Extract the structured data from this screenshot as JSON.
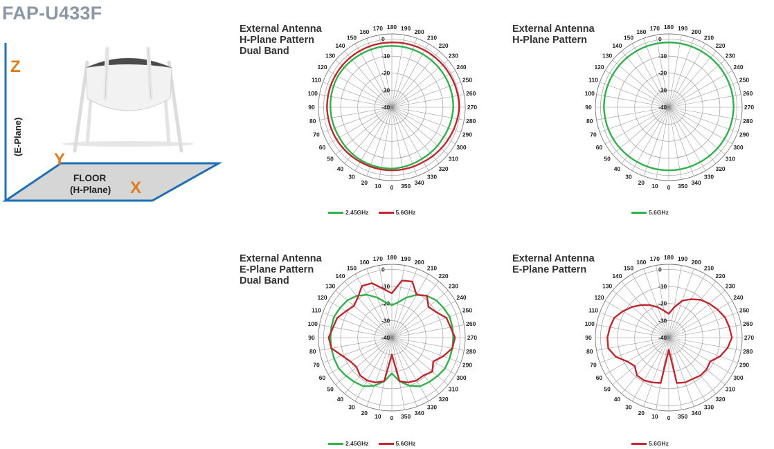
{
  "page": {
    "title": "FAP-U433F"
  },
  "diagram": {
    "axis_z": "Z",
    "axis_y": "Y",
    "axis_x": "X",
    "e_plane": "(E-Plane)",
    "floor_line1": "FLOOR",
    "floor_line2": "(H-Plane)",
    "accent_color": "#e07b1a",
    "line_color": "#1f6fb4"
  },
  "colors": {
    "green": "#2fb04a",
    "red": "#c0262d",
    "grid": "#9a9a9a"
  },
  "chart_data": [
    {
      "type": "polar-line",
      "title": [
        "External Antenna",
        "H-Plane Pattern",
        "Dual Band"
      ],
      "angle_labels": [
        "0",
        "10",
        "20",
        "30",
        "40",
        "50",
        "60",
        "70",
        "80",
        "90",
        "100",
        "110",
        "120",
        "130",
        "140",
        "150",
        "160",
        "170",
        "180",
        "190",
        "200",
        "210",
        "220",
        "230",
        "240",
        "250",
        "260",
        "270",
        "280",
        "290",
        "300",
        "310",
        "320",
        "330",
        "340",
        "350"
      ],
      "radial_ticks": [
        "0",
        "-10",
        "-20",
        "-30",
        "-40"
      ],
      "r_range_db": [
        -40,
        0
      ],
      "legend": [
        {
          "name": "2.45GHz",
          "color": "#2fb04a"
        },
        {
          "name": "5.6GHz",
          "color": "#c0262d"
        }
      ],
      "series": [
        {
          "name": "2.45GHz",
          "color": "#2fb04a",
          "angles_deg": [
            0,
            30,
            60,
            90,
            120,
            150,
            180,
            210,
            240,
            270,
            300,
            330,
            360
          ],
          "values_db": [
            -4,
            -4,
            -4.5,
            -4,
            -3.5,
            -4,
            -4,
            -4,
            -4,
            -4,
            -5,
            -5,
            -4
          ]
        },
        {
          "name": "5.6GHz",
          "color": "#c0262d",
          "angles_deg": [
            0,
            30,
            60,
            90,
            120,
            150,
            180,
            210,
            240,
            270,
            300,
            330,
            360
          ],
          "values_db": [
            -3,
            -3,
            -2.5,
            -2,
            -2,
            -2,
            -2,
            -1.5,
            -1,
            -0.5,
            -2,
            -3,
            -3
          ]
        }
      ]
    },
    {
      "type": "polar-line",
      "title": [
        "External Antenna",
        "H-Plane Pattern"
      ],
      "angle_labels": [
        "0",
        "10",
        "20",
        "30",
        "40",
        "50",
        "60",
        "70",
        "80",
        "90",
        "100",
        "110",
        "120",
        "130",
        "140",
        "150",
        "160",
        "170",
        "180",
        "190",
        "200",
        "210",
        "220",
        "230",
        "240",
        "250",
        "260",
        "270",
        "280",
        "290",
        "300",
        "310",
        "320",
        "330",
        "340",
        "350"
      ],
      "radial_ticks": [
        "0",
        "-10",
        "-20",
        "-30",
        "-40"
      ],
      "r_range_db": [
        -40,
        0
      ],
      "legend": [
        {
          "name": "5.6GHz",
          "color": "#2fb04a"
        }
      ],
      "series": [
        {
          "name": "5.6GHz",
          "color": "#2fb04a",
          "angles_deg": [
            0,
            30,
            60,
            90,
            120,
            150,
            180,
            210,
            240,
            270,
            300,
            330,
            360
          ],
          "values_db": [
            -3,
            -3,
            -2.5,
            -2,
            -2,
            -2,
            -2,
            -2,
            -2,
            -2,
            -2.5,
            -3,
            -3
          ]
        }
      ]
    },
    {
      "type": "polar-line",
      "title": [
        "External Antenna",
        "E-Plane Pattern",
        "Dual Band"
      ],
      "angle_labels": [
        "0",
        "10",
        "20",
        "30",
        "40",
        "50",
        "60",
        "70",
        "80",
        "90",
        "100",
        "110",
        "120",
        "130",
        "140",
        "150",
        "160",
        "170",
        "180",
        "190",
        "200",
        "210",
        "220",
        "230",
        "240",
        "250",
        "260",
        "270",
        "280",
        "290",
        "300",
        "310",
        "320",
        "330",
        "340",
        "350"
      ],
      "radial_ticks": [
        "0",
        "-10",
        "-20",
        "-30",
        "-40"
      ],
      "r_range_db": [
        -40,
        0
      ],
      "legend": [
        {
          "name": "2.45GHz",
          "color": "#2fb04a"
        },
        {
          "name": "5.6GHz",
          "color": "#c0262d"
        }
      ],
      "series": [
        {
          "name": "2.45GHz",
          "color": "#2fb04a",
          "angles_deg": [
            0,
            10,
            20,
            30,
            40,
            50,
            60,
            70,
            80,
            90,
            100,
            110,
            120,
            130,
            140,
            150,
            160,
            170,
            180,
            190,
            200,
            210,
            220,
            230,
            240,
            250,
            260,
            270,
            280,
            290,
            300,
            310,
            320,
            330,
            340,
            350,
            360
          ],
          "values_db": [
            -19,
            -14,
            -10,
            -7,
            -6,
            -5,
            -4,
            -4,
            -4,
            -4,
            -4,
            -4,
            -5,
            -6,
            -8,
            -11,
            -15,
            -19,
            -21,
            -19,
            -15,
            -11,
            -8,
            -6,
            -5,
            -4,
            -4,
            -4,
            -4,
            -4,
            -4,
            -5,
            -6,
            -7,
            -10,
            -14,
            -19
          ]
        },
        {
          "name": "5.6GHz",
          "color": "#c0262d",
          "angles_deg": [
            0,
            10,
            20,
            30,
            40,
            50,
            60,
            70,
            80,
            90,
            100,
            110,
            120,
            130,
            140,
            150,
            160,
            170,
            180,
            190,
            200,
            210,
            220,
            230,
            240,
            250,
            260,
            270,
            280,
            290,
            300,
            310,
            320,
            330,
            340,
            350,
            360
          ],
          "values_db": [
            -30,
            -14,
            -12,
            -11,
            -11,
            -13,
            -12,
            -9,
            -4,
            -3,
            -5,
            -6,
            -9,
            -11,
            -9,
            -5,
            -6,
            -11,
            -14,
            -6,
            -5,
            -11,
            -8,
            -12,
            -10,
            -6,
            -5,
            -3,
            -4,
            -8,
            -12,
            -9,
            -11,
            -11,
            -12,
            -14,
            -30
          ]
        }
      ]
    },
    {
      "type": "polar-line",
      "title": [
        "External Antenna",
        "E-Plane Pattern"
      ],
      "angle_labels": [
        "0",
        "10",
        "20",
        "30",
        "40",
        "50",
        "60",
        "70",
        "80",
        "90",
        "100",
        "110",
        "120",
        "130",
        "140",
        "150",
        "160",
        "170",
        "180",
        "190",
        "200",
        "210",
        "220",
        "230",
        "240",
        "250",
        "260",
        "270",
        "280",
        "290",
        "300",
        "310",
        "320",
        "330",
        "340",
        "350"
      ],
      "radial_ticks": [
        "0",
        "-10",
        "-20",
        "-30",
        "-40"
      ],
      "r_range_db": [
        -40,
        0
      ],
      "legend": [
        {
          "name": "5.6GHz",
          "color": "#c0262d"
        }
      ],
      "series": [
        {
          "name": "5.6GHz",
          "color": "#c0262d",
          "angles_deg": [
            0,
            10,
            20,
            30,
            40,
            50,
            60,
            70,
            80,
            90,
            100,
            110,
            120,
            130,
            140,
            150,
            160,
            170,
            180,
            190,
            200,
            210,
            220,
            230,
            240,
            250,
            260,
            270,
            280,
            290,
            300,
            310,
            320,
            330,
            340,
            350,
            360
          ],
          "values_db": [
            -33,
            -13,
            -12,
            -11,
            -11,
            -14,
            -12,
            -7,
            -4,
            -4,
            -5,
            -6,
            -9,
            -12,
            -15,
            -18,
            -21,
            -24,
            -26,
            -22,
            -17,
            -14,
            -11,
            -9,
            -7,
            -5,
            -4,
            -3,
            -5,
            -8,
            -12,
            -11,
            -11,
            -12,
            -12,
            -13,
            -33
          ]
        }
      ]
    }
  ]
}
